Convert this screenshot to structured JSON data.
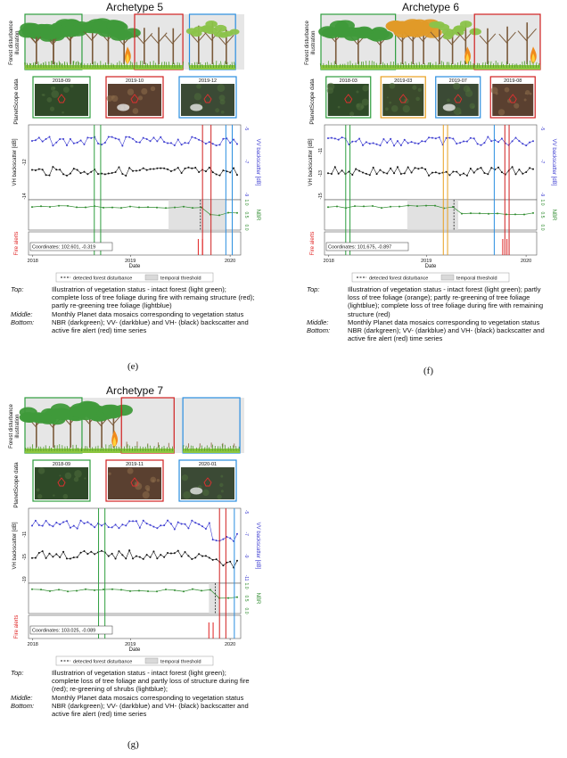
{
  "panels": [
    {
      "title": "Archetype 5",
      "row_labels": [
        "Forest disturbance illustration",
        "PlanetScope data"
      ],
      "mosaic_dates": [
        "2018-09",
        "2019-10",
        "2019-12"
      ],
      "mosaic_colors": [
        "#2e9e3e",
        "#d02020",
        "#2a8ee0"
      ],
      "vh_label": "VH backscatter [dB]",
      "vv_label": "VV backscatter [dB]",
      "nbr_label": "NBR",
      "fire_label": "Fire alerts",
      "vh_ticks": [
        "-14",
        "-12"
      ],
      "vv_ticks": [
        "-9",
        "-7",
        "-5"
      ],
      "nbr_ticks": [
        "0.0",
        "0.5",
        "1.0"
      ],
      "coordinates": "Coordinates: 102.601, -0.319",
      "x_ticks": [
        "2018",
        "2019",
        "2020"
      ],
      "x_label": "Date",
      "legend": [
        "detected forest disturbance",
        "temporal threshold"
      ],
      "caption": [
        {
          "key": "Top:",
          "text": "Illustratrion of vegetation status - intact forest (light green); complete loss of tree foliage during fire with remaing structure (red); partly re-greening tree foliage (lightblue)"
        },
        {
          "key": "Middle:",
          "text": "Monthly Planet data mosaics corresponding to vegetation status"
        },
        {
          "key": "Bottom:",
          "text": "NBR (darkgreen); VV- (darkblue) and VH- (black) backscatter and active fire alert (red) time series"
        }
      ],
      "label": "(e)"
    },
    {
      "title": "Archetype 6",
      "row_labels": [
        "Forest disturbance illustration",
        "PlanetScope data"
      ],
      "mosaic_dates": [
        "2018-03",
        "2019-03",
        "2019-07",
        "2019-08"
      ],
      "mosaic_colors": [
        "#2e9e3e",
        "#e8a020",
        "#2a8ee0",
        "#d02020"
      ],
      "vh_label": "VH backscatter [dB]",
      "vv_label": "VV backscatter [dB]",
      "nbr_label": "NBR",
      "fire_label": "Fire alerts",
      "vh_ticks": [
        "-15",
        "-13",
        "-11"
      ],
      "vv_ticks": [
        "-9",
        "-7",
        "-5"
      ],
      "nbr_ticks": [
        "0.0",
        "0.5",
        "1.0"
      ],
      "coordinates": "Coordinates: 101.675, -0.897",
      "x_ticks": [
        "2018",
        "2019",
        "2020"
      ],
      "x_label": "Date",
      "legend": [
        "detected forest disturbance",
        "temporal threshold"
      ],
      "caption": [
        {
          "key": "Top:",
          "text": "Illustratrion of vegetation status - intact forest (light green); partly loss of tree foliage (orange); partly re-greening of tree foliage (lightblue); complete loss of tree foliage during fire with remaining structure (red)"
        },
        {
          "key": "Middle:",
          "text": "Monthly Planet data mosaics corresponding to vegetation status"
        },
        {
          "key": "Bottom:",
          "text": "NBR (darkgreen); VV- (darkblue) and VH- (black) backscatter and active fire alert (red) time series"
        }
      ],
      "label": "(f)"
    },
    {
      "title": "Archetype 7",
      "row_labels": [
        "Forest disturbance illustration",
        "PlanetScope data"
      ],
      "mosaic_dates": [
        "2018-09",
        "2019-11",
        "2020-01"
      ],
      "mosaic_colors": [
        "#2e9e3e",
        "#d02020",
        "#2a8ee0"
      ],
      "vh_label": "VH backscatter [dB]",
      "vv_label": "VV backscatter [dB]",
      "nbr_label": "NBR",
      "fire_label": "Fire alerts",
      "vh_ticks": [
        "-19",
        "-15",
        "-11"
      ],
      "vv_ticks": [
        "-11",
        "-9",
        "-7",
        "-5"
      ],
      "nbr_ticks": [
        "0.0",
        "0.5",
        "1.0"
      ],
      "coordinates": "Coordinates: 103.025, -0.089",
      "x_ticks": [
        "2018",
        "2019",
        "2020"
      ],
      "x_label": "Date",
      "legend": [
        "detected forest disturbance",
        "temporal threshold"
      ],
      "caption": [
        {
          "key": "Top:",
          "text": "Illustratrion of vegetation status - intact forest (light green); complete loss of tree foliage and partly loss of structure during fire (red); re-greening of shrubs (lightblue);"
        },
        {
          "key": "Middle:",
          "text": "Monthly Planet data mosaics corresponding to vegetation status"
        },
        {
          "key": "Bottom:",
          "text": "NBR (darkgreen); VV- (darkblue) and VH- (black) backscatter and active fire alert (red) time series"
        }
      ],
      "label": "(g)"
    }
  ]
}
